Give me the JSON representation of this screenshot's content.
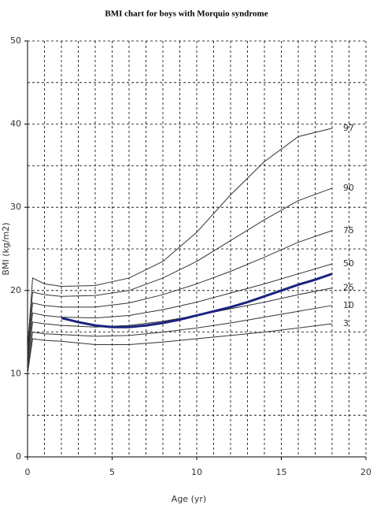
{
  "chart_data": {
    "type": "line",
    "title": "BMI chart for boys with Morquio syndrome",
    "x_label": "Age (yr)",
    "y_label": "BMI (kg/m2)",
    "xlim": [
      0,
      20
    ],
    "ylim": [
      0,
      50
    ],
    "xticks": [
      0,
      5,
      10,
      15,
      20
    ],
    "yticks": [
      0,
      10,
      20,
      30,
      40,
      50
    ],
    "grid": true,
    "xgrid_step": 1,
    "ygrid_step": 5,
    "series": [
      {
        "name": "97",
        "color": "#333333",
        "x": [
          0,
          0.3,
          1,
          2,
          4,
          6,
          8,
          10,
          12,
          14,
          16,
          18
        ],
        "values": [
          13,
          21.5,
          20.8,
          20.5,
          20.6,
          21.5,
          23.5,
          27,
          31.5,
          35.5,
          38.5,
          39.5
        ]
      },
      {
        "name": "90",
        "color": "#333333",
        "x": [
          0,
          0.3,
          1,
          2,
          4,
          6,
          8,
          10,
          12,
          14,
          16,
          18
        ],
        "values": [
          12.5,
          19.8,
          19.5,
          19.3,
          19.4,
          20,
          21.5,
          23.5,
          26,
          28.5,
          30.8,
          32.3
        ]
      },
      {
        "name": "75",
        "color": "#333333",
        "x": [
          0,
          0.3,
          1,
          2,
          4,
          6,
          8,
          10,
          12,
          14,
          16,
          18
        ],
        "values": [
          12,
          18.5,
          18.2,
          18,
          18,
          18.5,
          19.5,
          20.8,
          22.3,
          24,
          25.8,
          27.2
        ]
      },
      {
        "name": "50",
        "color": "#333333",
        "x": [
          0,
          0.3,
          1,
          2,
          4,
          6,
          8,
          10,
          12,
          14,
          16,
          18
        ],
        "values": [
          11.5,
          17.3,
          17,
          16.8,
          16.7,
          17,
          17.7,
          18.6,
          19.7,
          20.8,
          22,
          23.2
        ]
      },
      {
        "name": "25",
        "color": "#333333",
        "x": [
          0,
          0.3,
          1,
          2,
          4,
          6,
          8,
          10,
          12,
          14,
          16,
          18
        ],
        "values": [
          11,
          16.2,
          16,
          15.8,
          15.6,
          15.8,
          16.3,
          17,
          17.8,
          18.6,
          19.5,
          20.3
        ]
      },
      {
        "name": "10",
        "color": "#333333",
        "x": [
          0,
          0.3,
          1,
          2,
          4,
          6,
          8,
          10,
          12,
          14,
          16,
          18
        ],
        "values": [
          10.5,
          15,
          14.8,
          14.7,
          14.5,
          14.6,
          15,
          15.5,
          16.1,
          16.8,
          17.5,
          18.2
        ]
      },
      {
        "name": "3",
        "color": "#333333",
        "x": [
          0,
          0.3,
          1,
          2,
          4,
          6,
          8,
          10,
          12,
          14,
          16,
          18
        ],
        "values": [
          10,
          14.2,
          14,
          13.9,
          13.5,
          13.5,
          13.8,
          14.2,
          14.6,
          15,
          15.5,
          16
        ]
      },
      {
        "color": "#1a237e",
        "x": [
          2,
          3,
          4,
          5,
          6,
          7,
          8,
          9,
          10,
          11,
          12,
          13,
          14,
          15,
          16,
          17,
          18
        ],
        "values": [
          16.7,
          16.2,
          15.8,
          15.6,
          15.6,
          15.8,
          16.1,
          16.5,
          17,
          17.5,
          18,
          18.6,
          19.3,
          20,
          20.7,
          21.3,
          22
        ]
      }
    ]
  }
}
